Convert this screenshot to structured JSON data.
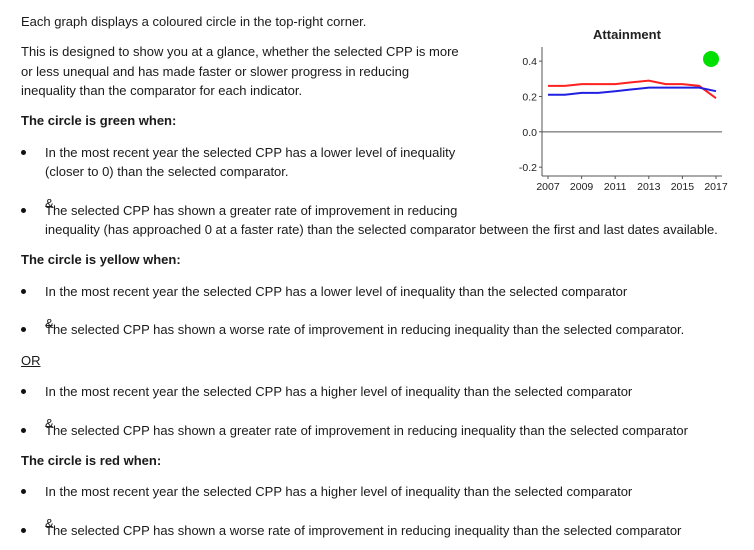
{
  "intro": {
    "line1": "Each graph displays a coloured circle in the top-right corner.",
    "para_line1": "This is designed to show you at a glance, whether the selected CPP is more",
    "para_line2": "or less unequal and has made faster or slower progress in reducing",
    "para_line3": "inequality than the comparator for each indicator."
  },
  "green": {
    "heading": "The circle is green when:",
    "b1_line1": "In the most recent year the selected CPP has a lower level of inequality",
    "b1_line2": "(closer to 0) than the selected comparator.",
    "amp": "&",
    "b2_line1": "The selected CPP has shown a greater rate of improvement in reducing",
    "b2_line2": "inequality (has approached 0 at a faster rate) than the selected comparator between the first and last dates available."
  },
  "yellow": {
    "heading": "The circle is yellow when:",
    "b1": "In the most recent year the selected CPP has a lower level of inequality than the selected comparator",
    "amp1": "&",
    "b2": "The selected CPP has shown a worse rate of improvement in reducing inequality than the selected comparator.",
    "or": "OR",
    "b3": "In the most recent year the selected CPP has a higher level of inequality than the selected comparator",
    "amp2": "&",
    "b4": "The selected CPP has shown a greater rate of improvement in reducing inequality than the selected comparator"
  },
  "red": {
    "heading": "The circle is red when:",
    "b1": "In the most recent year the selected CPP has a higher level of inequality than the selected comparator",
    "amp": "&",
    "b2": "The selected CPP has shown a worse rate of improvement in reducing inequality than the selected comparator"
  },
  "chart_data": {
    "type": "line",
    "title": "Attainment",
    "x": [
      2007,
      2008,
      2009,
      2010,
      2011,
      2012,
      2013,
      2014,
      2015,
      2016,
      2017
    ],
    "x_tick_labels": [
      "2007",
      "2009",
      "2011",
      "2013",
      "2015",
      "2017"
    ],
    "y_ticks": [
      "0.4",
      "0.2",
      "0.0",
      "-0.2"
    ],
    "ylim": [
      -0.25,
      0.48
    ],
    "series": [
      {
        "color": "#ff2020",
        "values": [
          0.26,
          0.26,
          0.27,
          0.27,
          0.27,
          0.28,
          0.29,
          0.27,
          0.27,
          0.26,
          0.19
        ]
      },
      {
        "color": "#2020e0",
        "values": [
          0.21,
          0.21,
          0.22,
          0.22,
          0.23,
          0.24,
          0.25,
          0.25,
          0.25,
          0.25,
          0.23
        ]
      }
    ],
    "indicator": {
      "color": "#00e000",
      "meaning": "green"
    },
    "grid": false
  }
}
